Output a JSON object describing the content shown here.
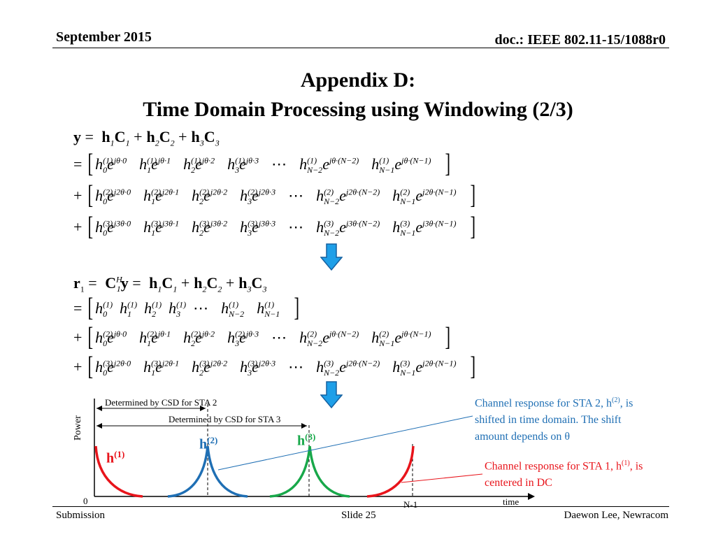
{
  "header": {
    "date": "September 2015",
    "doc": "doc.: IEEE 802.11-15/1088r0"
  },
  "title": {
    "line1": "Appendix D:",
    "line2": "Time Domain Processing using Windowing (2/3)"
  },
  "eq1": {
    "lhs": "y",
    "terms": [
      "h",
      "1",
      "C",
      "1",
      "h",
      "2",
      "C",
      "2",
      "h",
      "3",
      "C",
      "3"
    ]
  },
  "rows_y": [
    {
      "sup": "(1)",
      "k": "",
      "cells": [
        "0",
        "1",
        "2",
        "3"
      ],
      "idx": [
        "0",
        "1",
        "2",
        "3",
        "N−2",
        "N−1"
      ],
      "last": [
        "(N−2)",
        "(N−1)"
      ]
    },
    {
      "sup": "(2)",
      "k": "2",
      "cells": [
        "0",
        "1",
        "2",
        "3"
      ],
      "idx": [
        "0",
        "1",
        "2",
        "3",
        "N−2",
        "N−1"
      ],
      "last": [
        "(N−2)",
        "(N−1)"
      ]
    },
    {
      "sup": "(3)",
      "k": "3",
      "cells": [
        "0",
        "1",
        "2",
        "3"
      ],
      "idx": [
        "0",
        "1",
        "2",
        "3",
        "N−2",
        "N−1"
      ],
      "last": [
        "(N−2)",
        "(N−1)"
      ]
    }
  ],
  "eq2": {
    "lhs": "r",
    "lhs_sub": "1",
    "c_sup": "H",
    "c_sub": "1"
  },
  "rows_r": [
    {
      "sup": "(1)",
      "k": "",
      "plain": true
    },
    {
      "sup": "(2)",
      "k": "",
      "plain": false
    },
    {
      "sup": "(3)",
      "k": "2",
      "plain": false
    }
  ],
  "diagram": {
    "y_axis_label": "Power",
    "x_axis_label": "time",
    "origin_label": "0",
    "end_label": "N-1",
    "csd2_label": "Determined by CSD for STA 2",
    "csd3_label": "Determined by CSD for STA 3",
    "h1": "h",
    "h1_sup": "(1)",
    "h2": "h",
    "h2_sup": "(2)",
    "h3": "h",
    "h3_sup": "(3)",
    "colors": {
      "h1": "#e8141b",
      "h2": "#1f6fb4",
      "h3": "#18a84a",
      "note_blue": "#1f6fb4",
      "note_red": "#e8141b",
      "arrow": "#1e9fe8"
    }
  },
  "notes": {
    "blue": {
      "a": "Channel response for STA 2, h",
      "sup": "(2)",
      "b": ", is",
      "line2": "shifted in time domain. The shift",
      "line3": "amount depends on θ"
    },
    "red": {
      "a": "Channel response for STA 1, h",
      "sup": "(1)",
      "b": ", is",
      "line2": "centered in DC"
    }
  },
  "footer": {
    "left": "Submission",
    "center": "Slide 25",
    "right": "Daewon Lee, Newracom"
  }
}
